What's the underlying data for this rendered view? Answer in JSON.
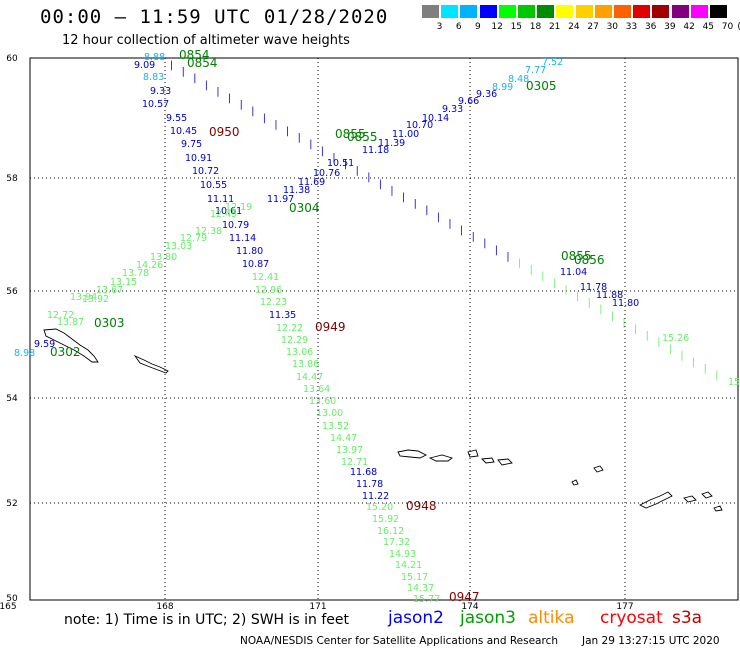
{
  "title": "00:00 – 11:59 UTC 01/28/2020",
  "subtitle": "12 hour collection of altimeter wave heights",
  "colorbar": {
    "unit": "(ft)",
    "labels": [
      "3",
      "6",
      "9",
      "12",
      "15",
      "18",
      "21",
      "24",
      "27",
      "30",
      "33",
      "36",
      "39",
      "42",
      "45",
      "70"
    ],
    "colors": [
      "#7f7f7f",
      "#00e5ff",
      "#00b2ff",
      "#0000ff",
      "#00ff00",
      "#00c800",
      "#008c00",
      "#ffff00",
      "#ffd000",
      "#ffa000",
      "#ff6000",
      "#e00000",
      "#a00000",
      "#800080",
      "#ff00ff",
      "#000000"
    ]
  },
  "axes": {
    "lat_labels": [
      "60",
      "58",
      "56",
      "54",
      "52",
      "50"
    ],
    "lon_labels": [
      "165",
      "168",
      "171",
      "174",
      "177"
    ]
  },
  "track_colors": {
    "jason2": "#0000c8",
    "jason3": "#00a000",
    "light_green": "#66ee66",
    "cyan": "#1ab2ee",
    "maroon": "#800000"
  },
  "time_labels": [
    {
      "text": "0854",
      "color": "#008000"
    },
    {
      "text": "0854",
      "color": "#008000"
    },
    {
      "text": "0305",
      "color": "#008000"
    },
    {
      "text": "0950",
      "color": "#800000"
    },
    {
      "text": "0855",
      "color": "#008000"
    },
    {
      "text": "0855",
      "color": "#008000"
    },
    {
      "text": "0304",
      "color": "#008000"
    },
    {
      "text": "0855",
      "color": "#008000"
    },
    {
      "text": "0856",
      "color": "#008000"
    },
    {
      "text": "0303",
      "color": "#008000"
    },
    {
      "text": "0302",
      "color": "#008000"
    },
    {
      "text": "0949",
      "color": "#800000"
    },
    {
      "text": "0948",
      "color": "#800000"
    },
    {
      "text": "0947",
      "color": "#800000"
    }
  ],
  "track_a_values": [
    "9.09",
    "9.33",
    "10.57",
    "9.55",
    "10.45",
    "9.75",
    "10.91",
    "10.72",
    "10.55",
    "11.11",
    "10.61",
    "10.79",
    "11.14",
    "11.80",
    "10.87"
  ],
  "track_a_values_top": [
    "8.88",
    "8.83"
  ],
  "track_b_values": [
    "12.41",
    "12.96",
    "12.23",
    "11.35",
    "12.22",
    "12.29",
    "13.06",
    "13.86",
    "14.47",
    "13.64",
    "13.60",
    "13.00",
    "13.52",
    "14.47",
    "13.97",
    "12.71",
    "11.68",
    "11.78",
    "11.22",
    "15.20",
    "15.92",
    "16.12",
    "17.32",
    "14.93",
    "14.21",
    "15.17",
    "14.37",
    "15.77"
  ],
  "track_b_colors": [
    "#66ee66",
    "#66ee66",
    "#66ee66",
    "#0000c8",
    "#66ee66",
    "#66ee66",
    "#66ee66",
    "#66ee66",
    "#66ee66",
    "#66ee66",
    "#66ee66",
    "#66ee66",
    "#66ee66",
    "#66ee66",
    "#66ee66",
    "#66ee66",
    "#0000c8",
    "#0000c8",
    "#0000c8",
    "#66ee66",
    "#66ee66",
    "#66ee66",
    "#66ee66",
    "#66ee66",
    "#66ee66",
    "#66ee66",
    "#66ee66",
    "#66ee66"
  ],
  "track_c_values": [
    "9.59",
    "8.98",
    "12.72",
    "13.87",
    "13.94",
    "13.92",
    "13.67",
    "13.15",
    "13.78",
    "14.26",
    "13.80",
    "13.03",
    "12.79",
    "12.38",
    "12.45",
    "12.19",
    "11.97",
    "11.38",
    "11.69",
    "10.76",
    "10.51"
  ],
  "track_d_values": [
    "7.52",
    "7.77",
    "8.48",
    "8.99",
    "9.36",
    "9.66",
    "9.33",
    "10.14",
    "10.70",
    "11.00",
    "11.39",
    "11.18"
  ],
  "track_e_values": [
    "11.04",
    "11.78",
    "11.88",
    "11.80",
    "15.26",
    "15"
  ],
  "footer_note": "note:  1) Time is in UTC;  2) SWH is in feet",
  "satellites": [
    {
      "name": "jason2",
      "color": "#0000ff"
    },
    {
      "name": "jason3",
      "color": "#00a000"
    },
    {
      "name": "altika",
      "color": "#ff8c00"
    },
    {
      "name": "cryosat",
      "color": "#ff0000"
    },
    {
      "name": "s3a",
      "color": "#c00000"
    }
  ],
  "credit": "NOAA/NESDIS Center for Satellite Applications and Research",
  "timestamp": "Jan 29 13:27:15 UTC 2020"
}
